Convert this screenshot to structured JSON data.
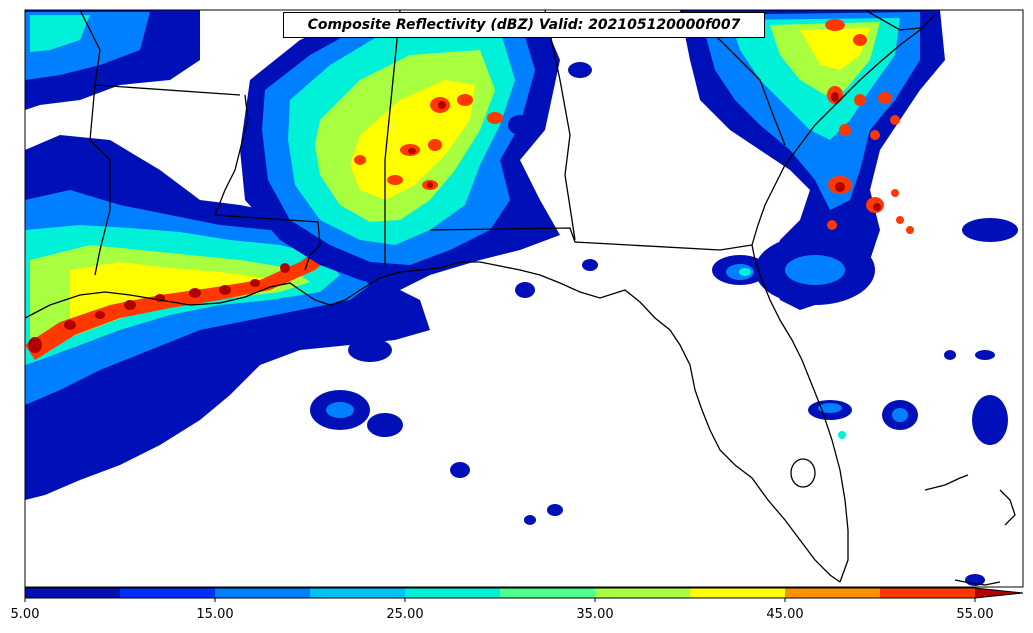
{
  "title": "Composite Reflectivity (dBZ) Valid: 202105120000f007",
  "colorbar": {
    "ticks": [
      "5.00",
      "15.00",
      "25.00",
      "35.00",
      "45.00",
      "55.00"
    ],
    "bins": [
      {
        "from": 5,
        "to": 10,
        "color": "#0010b8"
      },
      {
        "from": 10,
        "to": 15,
        "color": "#0030ff"
      },
      {
        "from": 15,
        "to": 20,
        "color": "#0080ff"
      },
      {
        "from": 20,
        "to": 25,
        "color": "#00c0f8"
      },
      {
        "from": 25,
        "to": 30,
        "color": "#00f0d8"
      },
      {
        "from": 30,
        "to": 35,
        "color": "#50ff90"
      },
      {
        "from": 35,
        "to": 40,
        "color": "#a8ff40"
      },
      {
        "from": 40,
        "to": 45,
        "color": "#ffff00"
      },
      {
        "from": 45,
        "to": 50,
        "color": "#ff9000"
      },
      {
        "from": 50,
        "to": 55,
        "color": "#ff3800"
      },
      {
        "from": 55,
        "to": 60,
        "color": "#b00000"
      }
    ],
    "extend": "max"
  },
  "map": {
    "region": "Southeastern United States and Gulf of Mexico",
    "variable": "Composite Reflectivity",
    "units": "dBZ"
  }
}
